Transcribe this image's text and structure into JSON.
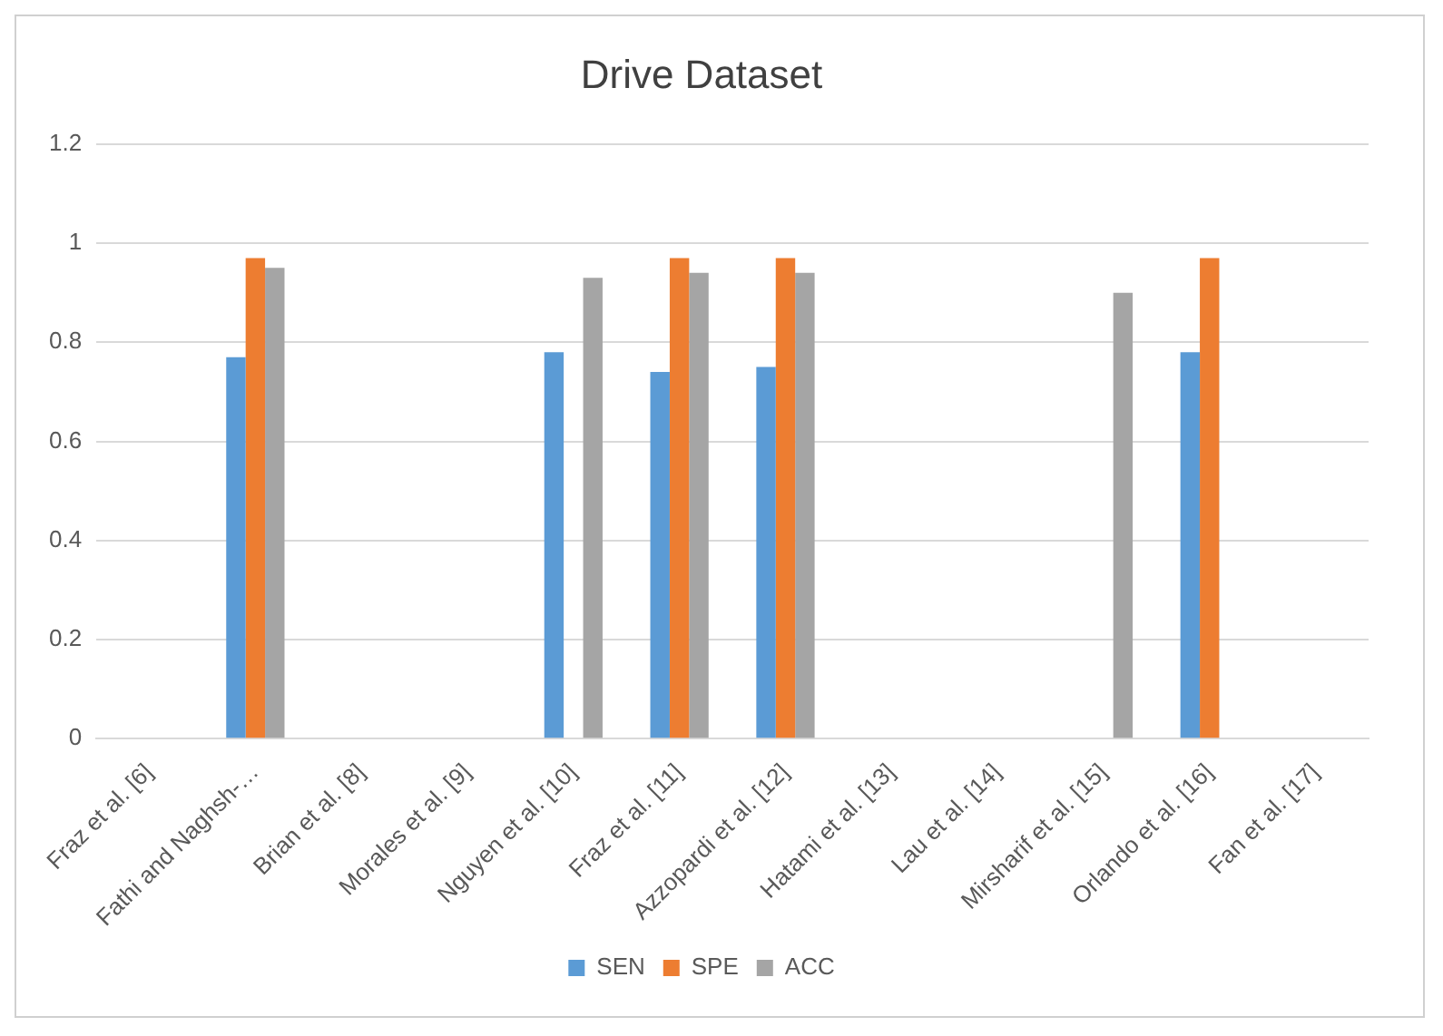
{
  "chart_data": {
    "type": "bar",
    "title": "Drive Dataset",
    "categories": [
      "Fraz et al. [6]",
      "Fathi and Naghsh-…",
      "Brian et al. [8]",
      "Morales et al. [9]",
      "Nguyen et al. [10]",
      "Fraz et al. [11]",
      "Azzopardi et al. [12]",
      "Hatami et al. [13]",
      "Lau et al. [14]",
      "Mirsharif et al. [15]",
      "Orlando et al. [16]",
      "Fan et al. [17]"
    ],
    "series": [
      {
        "name": "SEN",
        "color": "#5b9bd5",
        "values": [
          null,
          0.77,
          null,
          null,
          0.78,
          0.74,
          0.75,
          null,
          null,
          null,
          0.78,
          null
        ]
      },
      {
        "name": "SPE",
        "color": "#ed7d31",
        "values": [
          null,
          0.97,
          null,
          null,
          null,
          0.97,
          0.97,
          null,
          null,
          null,
          0.97,
          null
        ]
      },
      {
        "name": "ACC",
        "color": "#a5a5a5",
        "values": [
          null,
          0.95,
          null,
          null,
          0.93,
          0.94,
          0.94,
          null,
          null,
          0.9,
          null,
          null
        ]
      }
    ],
    "ylim": [
      0,
      1.2
    ],
    "yticks": [
      0,
      0.2,
      0.4,
      0.6,
      0.8,
      1,
      1.2
    ],
    "grid": "y",
    "legend": "bottom"
  }
}
